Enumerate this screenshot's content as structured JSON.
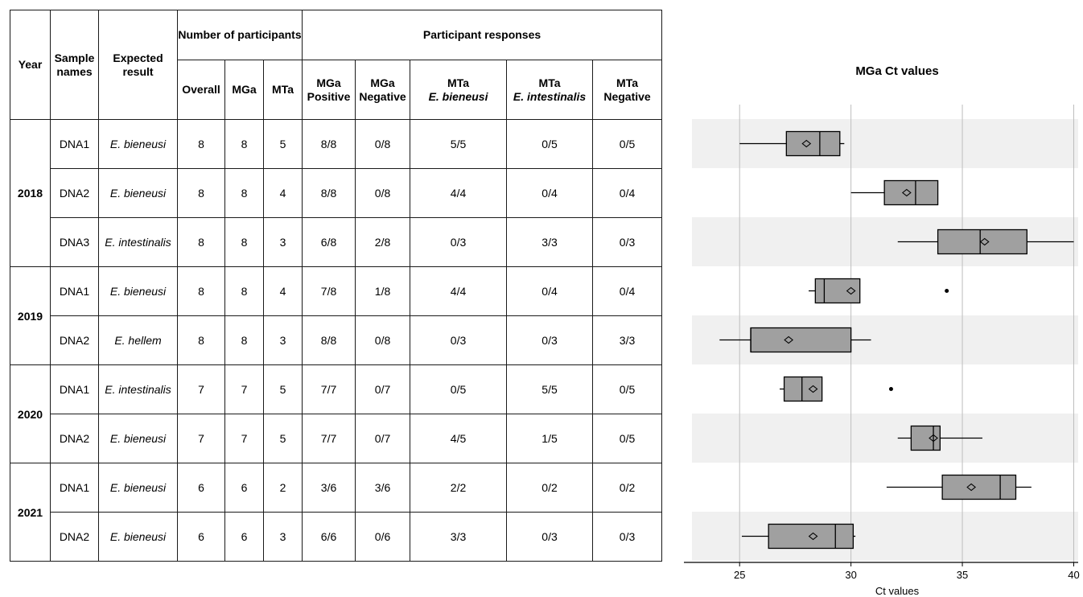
{
  "table": {
    "header": {
      "year": "Year",
      "sample_names": "Sample names",
      "expected_result": "Expected result",
      "num_participants": "Number of participants",
      "participant_responses": "Participant responses",
      "overall": "Overall",
      "mga": "MGa",
      "mta": "MTa",
      "mga_pos_1": "MGa",
      "mga_pos_2": "Positive",
      "mga_neg_1": "MGa",
      "mga_neg_2": "Negative",
      "mta_bien_1": "MTa",
      "mta_bien_2": "E. bieneusi",
      "mta_int_1": "MTa",
      "mta_int_2": "E. intestinalis",
      "mta_neg_1": "MTa",
      "mta_neg_2": "Negative"
    },
    "years": [
      {
        "year": "2018",
        "rows": [
          {
            "sample": "DNA1",
            "expected": "E. bieneusi",
            "overall": "8",
            "mga": "8",
            "mta": "5",
            "mga_pos": "8/8",
            "mga_neg": "0/8",
            "mta_bien": "5/5",
            "mta_int": "0/5",
            "mta_neg": "0/5"
          },
          {
            "sample": "DNA2",
            "expected": "E. bieneusi",
            "overall": "8",
            "mga": "8",
            "mta": "4",
            "mga_pos": "8/8",
            "mga_neg": "0/8",
            "mta_bien": "4/4",
            "mta_int": "0/4",
            "mta_neg": "0/4"
          },
          {
            "sample": "DNA3",
            "expected": "E. intestinalis",
            "overall": "8",
            "mga": "8",
            "mta": "3",
            "mga_pos": "6/8",
            "mga_neg": "2/8",
            "mta_bien": "0/3",
            "mta_int": "3/3",
            "mta_neg": "0/3"
          }
        ]
      },
      {
        "year": "2019",
        "rows": [
          {
            "sample": "DNA1",
            "expected": "E. bieneusi",
            "overall": "8",
            "mga": "8",
            "mta": "4",
            "mga_pos": "7/8",
            "mga_neg": "1/8",
            "mta_bien": "4/4",
            "mta_int": "0/4",
            "mta_neg": "0/4"
          },
          {
            "sample": "DNA2",
            "expected": "E. hellem",
            "overall": "8",
            "mga": "8",
            "mta": "3",
            "mga_pos": "8/8",
            "mga_neg": "0/8",
            "mta_bien": "0/3",
            "mta_int": "0/3",
            "mta_neg": "3/3"
          }
        ]
      },
      {
        "year": "2020",
        "rows": [
          {
            "sample": "DNA1",
            "expected": "E. intestinalis",
            "overall": "7",
            "mga": "7",
            "mta": "5",
            "mga_pos": "7/7",
            "mga_neg": "0/7",
            "mta_bien": "0/5",
            "mta_int": "5/5",
            "mta_neg": "0/5"
          },
          {
            "sample": "DNA2",
            "expected": "E. bieneusi",
            "overall": "7",
            "mga": "7",
            "mta": "5",
            "mga_pos": "7/7",
            "mga_neg": "0/7",
            "mta_bien": "4/5",
            "mta_int": "1/5",
            "mta_neg": "0/5"
          }
        ]
      },
      {
        "year": "2021",
        "rows": [
          {
            "sample": "DNA1",
            "expected": "E. bieneusi",
            "overall": "6",
            "mga": "6",
            "mta": "2",
            "mga_pos": "3/6",
            "mga_neg": "3/6",
            "mta_bien": "2/2",
            "mta_int": "0/2",
            "mta_neg": "0/2"
          },
          {
            "sample": "DNA2",
            "expected": "E. bieneusi",
            "overall": "6",
            "mga": "6",
            "mta": "3",
            "mga_pos": "6/6",
            "mga_neg": "0/6",
            "mta_bien": "3/3",
            "mta_int": "0/3",
            "mta_neg": "0/3"
          }
        ]
      }
    ]
  },
  "chart_data": {
    "type": "box",
    "title": "MGa Ct values",
    "xlabel": "Ct values",
    "xlim": [
      22.5,
      40.2
    ],
    "xticks": [
      25,
      30,
      35,
      40
    ],
    "grid": "vertical",
    "box_color": "#a0a0a0",
    "band_color": "#f0f0f0",
    "boxes": [
      {
        "min": 25.0,
        "q1": 27.1,
        "median": 28.6,
        "q3": 29.5,
        "max": 29.7,
        "mean": 28.0,
        "outliers": []
      },
      {
        "min": 30.0,
        "q1": 31.5,
        "median": 32.9,
        "q3": 33.9,
        "max": 33.9,
        "mean": 32.5,
        "outliers": []
      },
      {
        "min": 32.1,
        "q1": 33.9,
        "median": 35.8,
        "q3": 37.9,
        "max": 40.0,
        "mean": 36.0,
        "outliers": []
      },
      {
        "min": 28.1,
        "q1": 28.4,
        "median": 28.8,
        "q3": 30.4,
        "max": 30.4,
        "mean": 30.0,
        "outliers": [
          34.3
        ]
      },
      {
        "min": 24.1,
        "q1": 25.5,
        "median": 25.5,
        "q3": 30.0,
        "max": 30.9,
        "mean": 27.2,
        "outliers": []
      },
      {
        "min": 26.8,
        "q1": 27.0,
        "median": 27.8,
        "q3": 28.7,
        "max": 28.7,
        "mean": 28.3,
        "outliers": [
          31.8
        ]
      },
      {
        "min": 32.1,
        "q1": 32.7,
        "median": 33.7,
        "q3": 34.0,
        "max": 35.9,
        "mean": 33.7,
        "outliers": []
      },
      {
        "min": 31.6,
        "q1": 34.1,
        "median": 36.7,
        "q3": 37.4,
        "max": 38.1,
        "mean": 35.4,
        "outliers": []
      },
      {
        "min": 25.1,
        "q1": 26.3,
        "median": 29.3,
        "q3": 30.1,
        "max": 30.2,
        "mean": 28.3,
        "outliers": []
      }
    ]
  }
}
